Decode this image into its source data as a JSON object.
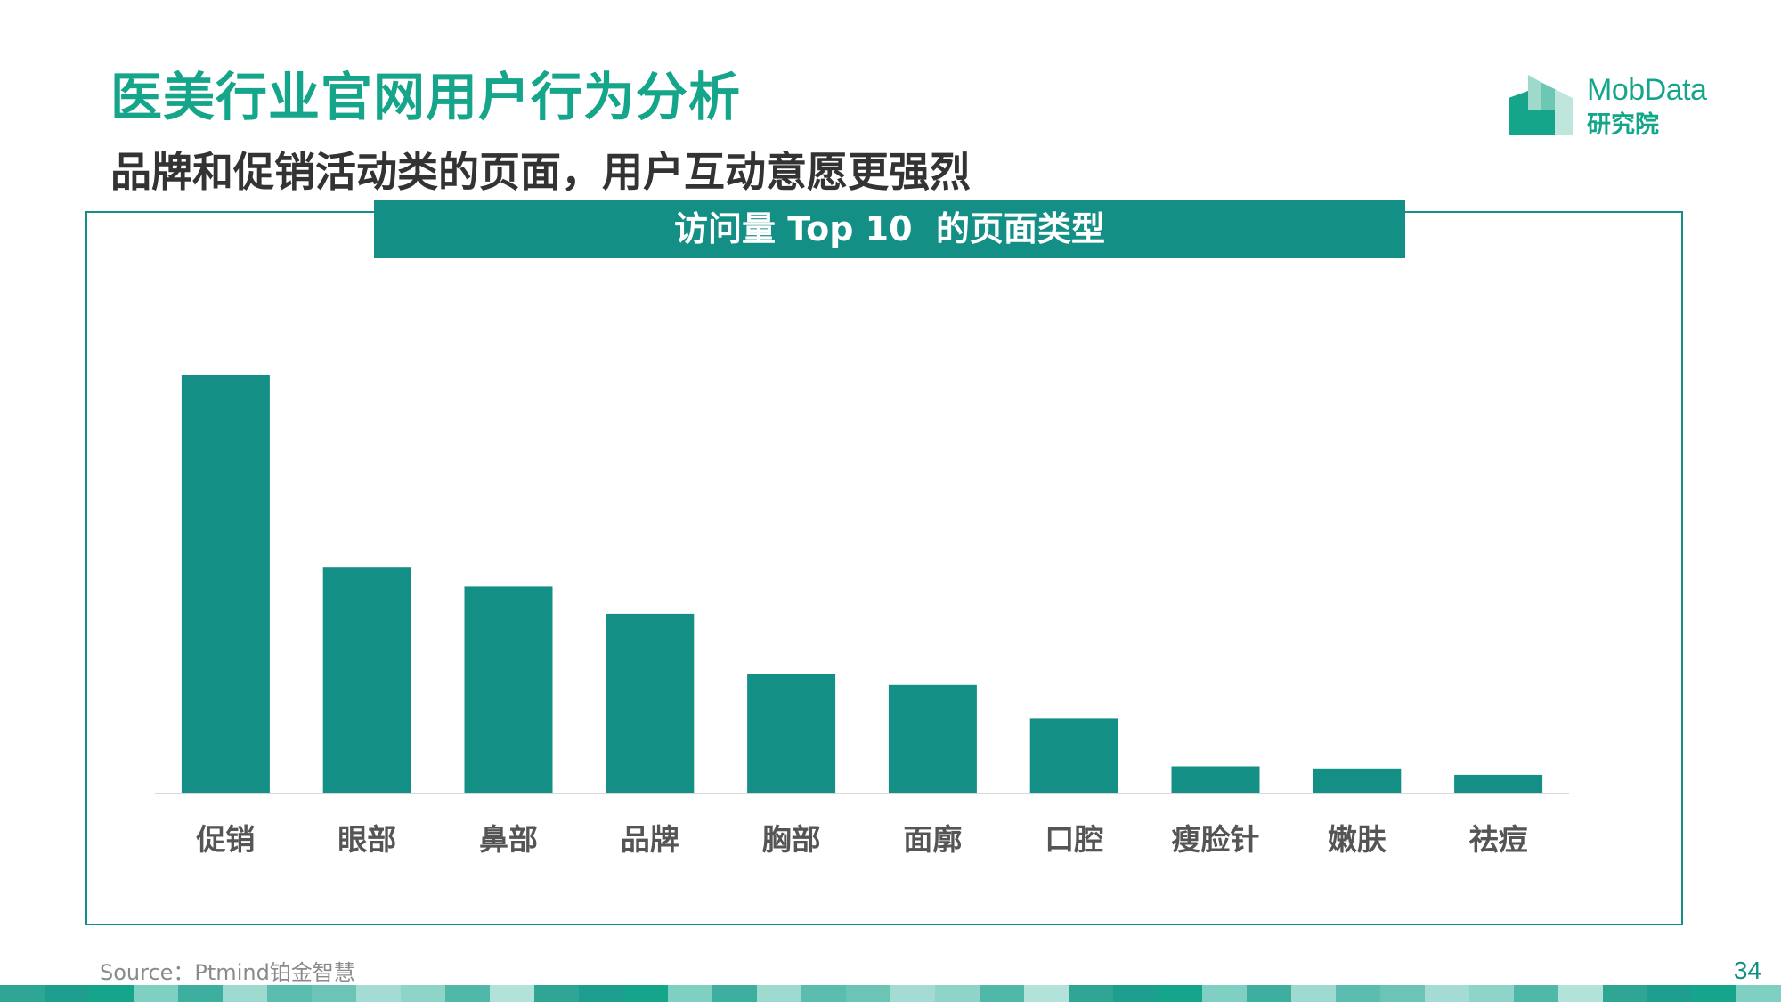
{
  "header": {
    "title": "医美行业官网用户行为分析",
    "subtitle": "品牌和促销活动类的页面，用户互动意愿更强烈"
  },
  "logo": {
    "word": "MobData",
    "sub": "研究院",
    "icon": "building-logo-icon"
  },
  "colors": {
    "accent": "#138f86",
    "title": "#14a58a",
    "bar": "#138f86",
    "axis": "#d9d9d9"
  },
  "chart_data": {
    "type": "bar",
    "title": "访问量 Top 10  的页面类型",
    "categories": [
      "促销",
      "眼部",
      "鼻部",
      "品牌",
      "胸部",
      "面廓",
      "口腔",
      "瘦脸针",
      "嫩肤",
      "祛痘"
    ],
    "values": [
      100,
      54,
      49.5,
      43,
      28.5,
      26,
      18,
      6.5,
      6,
      4.5
    ],
    "ylim": [
      0,
      100
    ],
    "xlabel": "",
    "ylabel": "",
    "grid": false,
    "legend": "none"
  },
  "footer": {
    "source": "Source：Ptmind铂金智慧",
    "page_number": "34"
  }
}
